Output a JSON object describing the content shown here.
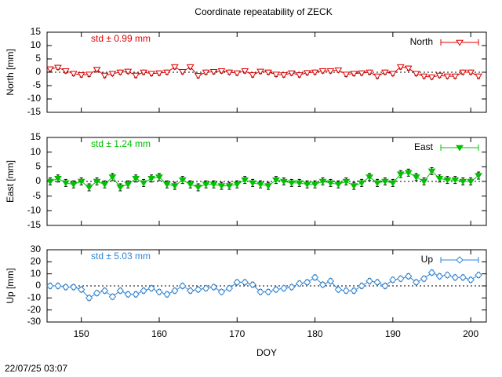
{
  "title": "Coordinate repeatability of ZECK",
  "footer": "22/07/25 03:07",
  "chart_data": [
    {
      "type": "errorbar-line",
      "ylabel": "North [mm]",
      "annotation": "std ± 0.99 mm",
      "xlim": [
        145.6,
        202
      ],
      "xticks": [
        150,
        160,
        170,
        180,
        190,
        200
      ],
      "ylim": [
        -15,
        15
      ],
      "yticks": [
        15,
        10,
        5,
        0,
        -5,
        -10,
        -15
      ],
      "x": [
        146,
        147,
        148,
        149,
        150,
        151,
        152,
        153,
        154,
        155,
        156,
        157,
        158,
        159,
        160,
        161,
        162,
        163,
        164,
        165,
        166,
        167,
        168,
        169,
        170,
        171,
        172,
        173,
        174,
        175,
        176,
        177,
        178,
        179,
        180,
        181,
        182,
        183,
        184,
        185,
        186,
        187,
        188,
        189,
        190,
        191,
        192,
        193,
        194,
        195,
        196,
        197,
        198,
        199,
        200,
        201
      ],
      "series": [
        {
          "name": "North",
          "color": "#e00000",
          "marker": "triangle-down-open",
          "values": [
            1.2,
            1.8,
            0.5,
            -0.5,
            -1,
            -0.8,
            1,
            -1.2,
            -0.5,
            0,
            0.3,
            -1.2,
            0,
            -0.5,
            -0.3,
            0,
            2,
            0.2,
            2,
            -1.3,
            0,
            0.2,
            0.5,
            0,
            -0.3,
            0.5,
            -1,
            0.3,
            0,
            -0.8,
            -1,
            -0.3,
            -1,
            -0.2,
            0,
            0.5,
            0.5,
            0.8,
            -0.8,
            -0.5,
            -0.3,
            0,
            -1.5,
            0,
            -0.5,
            2,
            1.5,
            -0.5,
            -1.5,
            -1.8,
            -1.2,
            -1.5,
            -1.5,
            0,
            0,
            -1.5
          ],
          "errors": [
            0.8,
            0.8,
            0.8,
            0.8,
            0.8,
            0.8,
            0.8,
            0.8,
            0.8,
            0.8,
            0.8,
            0.8,
            0.8,
            0.8,
            0.8,
            0.8,
            0.8,
            0.8,
            0.8,
            0.8,
            0.8,
            0.8,
            0.8,
            0.8,
            0.8,
            0.8,
            0.8,
            0.8,
            0.8,
            0.8,
            0.8,
            0.8,
            0.8,
            0.8,
            0.8,
            0.8,
            0.8,
            0.8,
            0.8,
            0.8,
            0.8,
            0.8,
            0.8,
            0.8,
            0.8,
            0.8,
            0.8,
            0.8,
            0.8,
            0.8,
            0.8,
            0.8,
            0.8,
            0.8,
            0.8,
            0.8
          ]
        }
      ]
    },
    {
      "type": "errorbar-line",
      "ylabel": "East [mm]",
      "annotation": "std ± 1.24 mm",
      "xlim": [
        145.6,
        202
      ],
      "xticks": [
        150,
        160,
        170,
        180,
        190,
        200
      ],
      "ylim": [
        -15,
        15
      ],
      "yticks": [
        15,
        10,
        5,
        0,
        -5,
        -10,
        -15
      ],
      "x": [
        146,
        147,
        148,
        149,
        150,
        151,
        152,
        153,
        154,
        155,
        156,
        157,
        158,
        159,
        160,
        161,
        162,
        163,
        164,
        165,
        166,
        167,
        168,
        169,
        170,
        171,
        172,
        173,
        174,
        175,
        176,
        177,
        178,
        179,
        180,
        181,
        182,
        183,
        184,
        185,
        186,
        187,
        188,
        189,
        190,
        191,
        192,
        193,
        194,
        195,
        196,
        197,
        198,
        199,
        200,
        201
      ],
      "series": [
        {
          "name": "East",
          "color": "#00c000",
          "marker": "triangle-down-filled",
          "values": [
            0,
            1,
            -0.5,
            -1,
            0,
            -2,
            0,
            -1,
            1.5,
            -2,
            -1,
            1,
            -0.5,
            1,
            1.5,
            -1,
            -1.5,
            0.5,
            -1,
            -2,
            -1,
            -1,
            -1.5,
            -1.5,
            -1,
            0.5,
            -0.5,
            -1,
            -1.5,
            0.5,
            0,
            -0.5,
            -0.5,
            -1,
            -1,
            0,
            -0.5,
            -1,
            0,
            -1.5,
            -0.5,
            1.5,
            -0.5,
            0,
            -0.5,
            2.5,
            3,
            1.5,
            0,
            3.5,
            1,
            0.5,
            0.5,
            0,
            0,
            2
          ],
          "errors": [
            1.2,
            1.2,
            1.2,
            1.2,
            1.2,
            1.2,
            1.2,
            1.2,
            1.2,
            1.2,
            1.2,
            1.2,
            1.2,
            1.2,
            1.2,
            1.2,
            1.2,
            1.2,
            1.2,
            1.2,
            1.2,
            1.2,
            1.2,
            1.2,
            1.2,
            1.2,
            1.2,
            1.2,
            1.2,
            1.2,
            1.2,
            1.2,
            1.2,
            1.2,
            1.2,
            1.2,
            1.2,
            1.2,
            1.2,
            1.2,
            1.2,
            1.2,
            1.2,
            1.2,
            1.2,
            1.2,
            1.2,
            1.2,
            1.2,
            1.2,
            1.2,
            1.2,
            1.2,
            1.2,
            1.2,
            1.2
          ]
        }
      ]
    },
    {
      "type": "errorbar-line",
      "ylabel": "Up [mm]",
      "annotation": "std ± 5.03 mm",
      "xlabel": "DOY",
      "xlim": [
        145.6,
        202
      ],
      "xticks": [
        150,
        160,
        170,
        180,
        190,
        200
      ],
      "ylim": [
        -30,
        30
      ],
      "yticks": [
        30,
        20,
        10,
        0,
        -10,
        -20,
        -30
      ],
      "x": [
        146,
        147,
        148,
        149,
        150,
        151,
        152,
        153,
        154,
        155,
        156,
        157,
        158,
        159,
        160,
        161,
        162,
        163,
        164,
        165,
        166,
        167,
        168,
        169,
        170,
        171,
        172,
        173,
        174,
        175,
        176,
        177,
        178,
        179,
        180,
        181,
        182,
        183,
        184,
        185,
        186,
        187,
        188,
        189,
        190,
        191,
        192,
        193,
        194,
        195,
        196,
        197,
        198,
        199,
        200,
        201
      ],
      "series": [
        {
          "name": "Up",
          "color": "#2f86d8",
          "marker": "diamond-open",
          "values": [
            0,
            0,
            -1,
            -1,
            -3,
            -10,
            -6,
            -4,
            -9,
            -4,
            -7,
            -7,
            -4,
            -2,
            -5,
            -7,
            -4,
            0,
            -4,
            -3,
            -2,
            -1,
            -5,
            -2,
            3,
            3,
            1,
            -5,
            -5,
            -3,
            -2,
            -1,
            2,
            3,
            7,
            1,
            4,
            -3,
            -4,
            -4,
            0,
            4,
            3,
            0,
            5,
            6,
            8,
            3,
            6,
            11,
            8,
            9,
            7,
            7,
            5,
            9
          ],
          "errors": [
            2,
            2,
            2,
            2,
            2,
            2,
            2,
            2,
            2,
            2,
            2,
            2,
            2,
            2,
            2,
            2,
            2,
            2,
            2,
            2,
            2,
            2,
            2,
            2,
            2,
            2,
            2,
            2,
            2,
            2,
            2,
            2,
            2,
            2,
            2,
            2,
            2,
            2,
            2,
            2,
            2,
            2,
            2,
            2,
            2,
            2,
            2,
            2,
            2,
            2,
            2,
            2,
            2,
            2,
            2,
            2
          ]
        }
      ]
    }
  ]
}
